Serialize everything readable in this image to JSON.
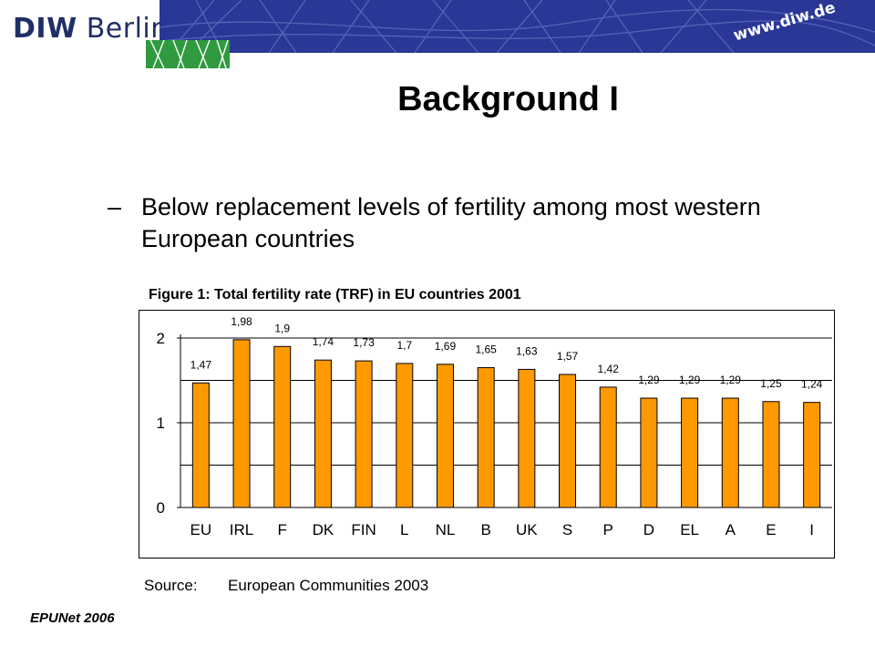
{
  "header": {
    "logo_bold": "DIW",
    "logo_rest": "Berlin",
    "url": "www.diw.de",
    "banner_color": "#2a3796",
    "accent_green": "#2f9a3f"
  },
  "slide": {
    "title": "Background I",
    "bullet_dash": "–",
    "bullet_text": "Below replacement levels of fertility among most western European countries",
    "figure_caption": "Figure 1: Total fertility rate (TRF) in EU countries 2001",
    "source_label": "Source:",
    "source_text": "European Communities 2003",
    "footer": "EPUNet 2006"
  },
  "chart_data": {
    "type": "bar",
    "title": "",
    "xlabel": "",
    "ylabel": "",
    "categories": [
      "EU",
      "IRL",
      "F",
      "DK",
      "FIN",
      "L",
      "NL",
      "B",
      "UK",
      "S",
      "P",
      "D",
      "EL",
      "A",
      "E",
      "I"
    ],
    "values": [
      1.47,
      1.98,
      1.9,
      1.74,
      1.73,
      1.7,
      1.69,
      1.65,
      1.63,
      1.57,
      1.42,
      1.29,
      1.29,
      1.29,
      1.25,
      1.24
    ],
    "data_labels": [
      "1,47",
      "1,98",
      "1,9",
      "1,74",
      "1,73",
      "1,7",
      "1,69",
      "1,65",
      "1,63",
      "1,57",
      "1,42",
      "1,29",
      "1,29",
      "1,29",
      "1,25",
      "1,24"
    ],
    "ytick_values": [
      0,
      1,
      2
    ],
    "ytick_labels": [
      "0",
      "1",
      "2"
    ],
    "ylim": [
      0,
      2.0
    ],
    "grid": true,
    "bar_color": "#ff9900",
    "bar_edge_color": "#000000"
  }
}
